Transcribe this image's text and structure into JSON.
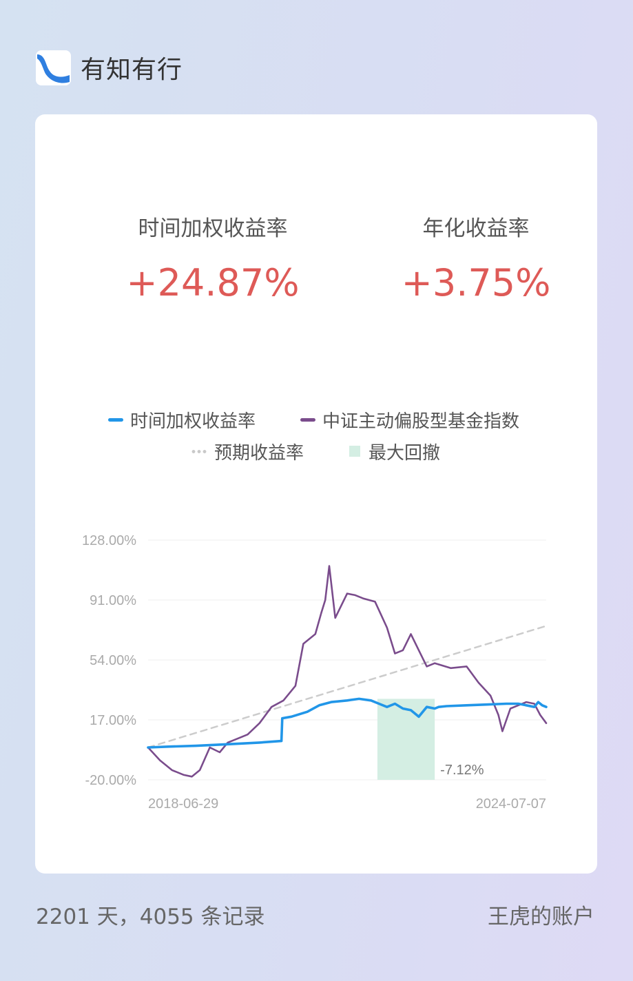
{
  "brand": {
    "name": "有知有行",
    "logo_icon": "wave-logo-icon",
    "logo_color": "#2f7fe0"
  },
  "stats": {
    "twr_label": "时间加权收益率",
    "twr_value": "+24.87%",
    "annual_label": "年化收益率",
    "annual_value": "+3.75%",
    "value_color": "#de5a57"
  },
  "legend": [
    {
      "label": "时间加权收益率",
      "color": "#2196e8",
      "kind": "line"
    },
    {
      "label": "中证主动偏股型基金指数",
      "color": "#7a4c8c",
      "kind": "line"
    },
    {
      "label": "预期收益率",
      "color": "#c9c9c9",
      "kind": "dots"
    },
    {
      "label": "最大回撤",
      "color": "#d4eee3",
      "kind": "box"
    }
  ],
  "chart_data": {
    "type": "line",
    "y_ticks": [
      "128.00%",
      "91.00%",
      "54.00%",
      "17.00%",
      "-20.00%"
    ],
    "ylim": [
      -20,
      128
    ],
    "xlim": [
      "2018-06-29",
      "2024-07-07"
    ],
    "x_tick_labels": [
      "2018-06-29",
      "2024-07-07"
    ],
    "grid": true,
    "series": [
      {
        "name": "时间加权收益率",
        "color": "#2196e8",
        "x": [
          0,
          0.05,
          0.12,
          0.2,
          0.28,
          0.335,
          0.337,
          0.36,
          0.4,
          0.43,
          0.46,
          0.5,
          0.53,
          0.56,
          0.58,
          0.6,
          0.62,
          0.64,
          0.66,
          0.68,
          0.7,
          0.72,
          0.73,
          0.75,
          0.8,
          0.85,
          0.9,
          0.93,
          0.95,
          0.97,
          0.98,
          0.99,
          1.0
        ],
        "values": [
          0,
          0.5,
          1,
          2,
          3,
          4,
          18,
          19,
          22,
          26,
          28,
          29,
          30,
          29,
          27,
          25,
          27,
          24,
          23,
          19,
          25,
          24,
          25,
          25.5,
          26,
          26.5,
          27,
          27,
          26,
          25,
          28,
          26,
          25
        ]
      },
      {
        "name": "中证主动偏股型基金指数",
        "color": "#7a4c8c",
        "x": [
          0,
          0.03,
          0.06,
          0.09,
          0.11,
          0.13,
          0.155,
          0.18,
          0.2,
          0.23,
          0.25,
          0.28,
          0.31,
          0.34,
          0.37,
          0.39,
          0.42,
          0.435,
          0.445,
          0.455,
          0.47,
          0.5,
          0.52,
          0.54,
          0.57,
          0.6,
          0.62,
          0.64,
          0.66,
          0.68,
          0.7,
          0.72,
          0.76,
          0.8,
          0.83,
          0.86,
          0.88,
          0.89,
          0.91,
          0.93,
          0.95,
          0.97,
          0.985,
          1.0
        ],
        "values": [
          0,
          -8,
          -14,
          -17,
          -18,
          -14,
          0,
          -3,
          3,
          6,
          8,
          15,
          25,
          29,
          38,
          64,
          70,
          83,
          91,
          112,
          80,
          95,
          94,
          92,
          90,
          74,
          58,
          60,
          70,
          60,
          50,
          52,
          49,
          50,
          40,
          32,
          20,
          10,
          24,
          26,
          28,
          27,
          20,
          15
        ]
      },
      {
        "name": "预期收益率",
        "color": "#cccccc",
        "x": [
          0,
          1
        ],
        "values": [
          0,
          75
        ]
      }
    ],
    "max_drawdown": {
      "x_start": 0.576,
      "x_end": 0.72,
      "value": "-7.12%",
      "color": "#d4eee3"
    }
  },
  "footer": {
    "records": "2201 天，4055 条记录",
    "account": "王虎的账户"
  }
}
